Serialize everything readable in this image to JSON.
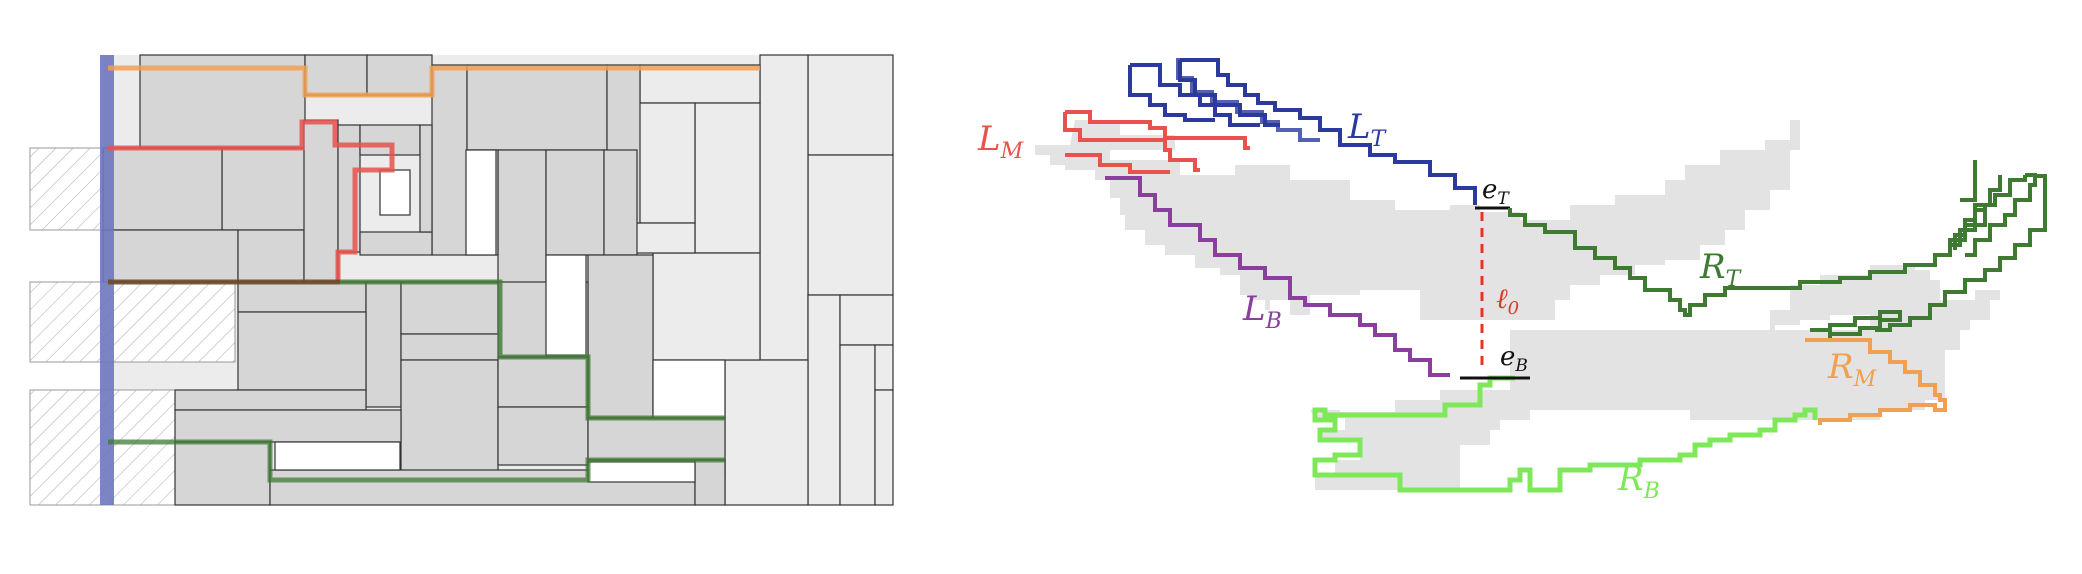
{
  "labels": {
    "left_top": "L",
    "left_top_sub": "T",
    "left_mid": "L",
    "left_mid_sub": "M",
    "left_bot": "L",
    "left_bot_sub": "B",
    "right_top": "R",
    "right_top_sub": "T",
    "right_mid": "R",
    "right_mid_sub": "M",
    "right_bot": "R",
    "right_bot_sub": "B",
    "edge_top": "e",
    "edge_top_sub": "T",
    "edge_bot": "e",
    "edge_bot_sub": "B",
    "cut_line": "ℓ",
    "cut_line_sub": "0"
  },
  "colors": {
    "blue": "#2b3a9c",
    "blue_band": "#6f77c0",
    "red": "#e8524c",
    "orange": "#f0a050",
    "purple": "#8a3f9e",
    "dark_green": "#3f7a33",
    "light_green": "#7fe85a",
    "dashed_red": "#d83a2a",
    "edge_black": "#111111",
    "region_fill": "#e3e3e3"
  }
}
